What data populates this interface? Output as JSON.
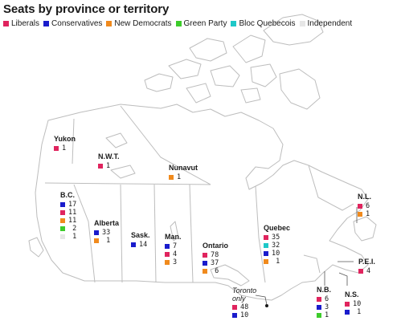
{
  "title": "Seats by province or territory",
  "parties": [
    {
      "key": "lib",
      "name": "Liberals",
      "color": "#e0245e"
    },
    {
      "key": "con",
      "name": "Conservatives",
      "color": "#1a1ccc"
    },
    {
      "key": "ndp",
      "name": "New Democrats",
      "color": "#f08a1d"
    },
    {
      "key": "grn",
      "name": "Green Party",
      "color": "#3dcc2b"
    },
    {
      "key": "bq",
      "name": "Bloc Quebecois",
      "color": "#1ec8c8"
    },
    {
      "key": "ind",
      "name": "Independent",
      "color": "#e6e6e6"
    }
  ],
  "regions": [
    {
      "id": "yukon",
      "name": "Yukon",
      "seats": [
        {
          "party": "lib",
          "count": "1"
        }
      ]
    },
    {
      "id": "nwt",
      "name": "N.W.T.",
      "seats": [
        {
          "party": "lib",
          "count": "1"
        }
      ]
    },
    {
      "id": "nunavut",
      "name": "Nunavut",
      "seats": [
        {
          "party": "ndp",
          "count": "1"
        }
      ]
    },
    {
      "id": "bc",
      "name": "B.C.",
      "seats": [
        {
          "party": "con",
          "count": "17"
        },
        {
          "party": "lib",
          "count": "11"
        },
        {
          "party": "ndp",
          "count": "11"
        },
        {
          "party": "grn",
          "count": " 2"
        },
        {
          "party": "ind",
          "count": " 1"
        }
      ]
    },
    {
      "id": "alberta",
      "name": "Alberta",
      "seats": [
        {
          "party": "con",
          "count": "33"
        },
        {
          "party": "ndp",
          "count": " 1"
        }
      ]
    },
    {
      "id": "sask",
      "name": "Sask.",
      "seats": [
        {
          "party": "con",
          "count": "14"
        }
      ]
    },
    {
      "id": "man",
      "name": "Man.",
      "seats": [
        {
          "party": "con",
          "count": "7"
        },
        {
          "party": "lib",
          "count": "4"
        },
        {
          "party": "ndp",
          "count": "3"
        }
      ]
    },
    {
      "id": "ontario",
      "name": "Ontario",
      "seats": [
        {
          "party": "lib",
          "count": "78"
        },
        {
          "party": "con",
          "count": "37"
        },
        {
          "party": "ndp",
          "count": " 6"
        }
      ]
    },
    {
      "id": "quebec",
      "name": "Quebec",
      "seats": [
        {
          "party": "lib",
          "count": "35"
        },
        {
          "party": "bq",
          "count": "32"
        },
        {
          "party": "con",
          "count": "10"
        },
        {
          "party": "ndp",
          "count": " 1"
        }
      ]
    },
    {
      "id": "nl",
      "name": "N.L.",
      "seats": [
        {
          "party": "lib",
          "count": "6"
        },
        {
          "party": "ndp",
          "count": "1"
        }
      ]
    },
    {
      "id": "pei",
      "name": "P.E.I.",
      "seats": [
        {
          "party": "lib",
          "count": "4"
        }
      ]
    },
    {
      "id": "nb",
      "name": "N.B.",
      "seats": [
        {
          "party": "lib",
          "count": "6"
        },
        {
          "party": "con",
          "count": "3"
        },
        {
          "party": "grn",
          "count": "1"
        }
      ]
    },
    {
      "id": "ns",
      "name": "N.S.",
      "seats": [
        {
          "party": "lib",
          "count": "10"
        },
        {
          "party": "con",
          "count": " 1"
        }
      ]
    },
    {
      "id": "toronto",
      "name": "Toronto only",
      "italic": true,
      "seats": [
        {
          "party": "lib",
          "count": "48"
        },
        {
          "party": "con",
          "count": "10"
        }
      ]
    }
  ]
}
